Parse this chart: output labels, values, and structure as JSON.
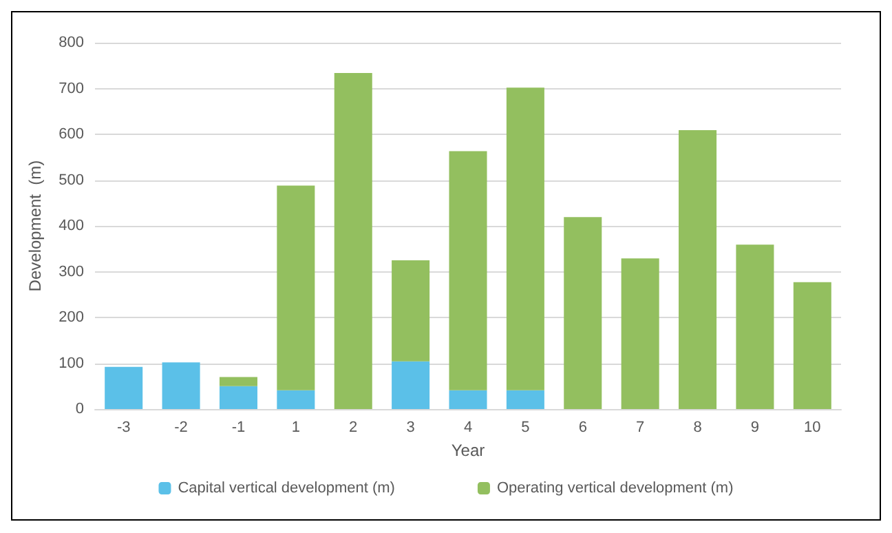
{
  "chart_data": {
    "type": "bar",
    "stacked": true,
    "xlabel": "Year",
    "ylabel": "Development  (m)",
    "categories": [
      "-3",
      "-2",
      "-1",
      "1",
      "2",
      "3",
      "4",
      "5",
      "6",
      "7",
      "8",
      "9",
      "10"
    ],
    "series": [
      {
        "name": "Capital vertical development (m)",
        "color": "#5bc0e8",
        "values": [
          92,
          102,
          50,
          41,
          null,
          104,
          41,
          41,
          null,
          null,
          null,
          null,
          null
        ]
      },
      {
        "name": "Operating vertical development (m)",
        "color": "#93bf5f",
        "values": [
          null,
          null,
          20,
          447,
          734,
          221,
          522,
          661,
          419,
          329,
          609,
          359,
          277
        ]
      }
    ],
    "ylim": [
      0,
      800
    ],
    "yticks": [
      0,
      100,
      200,
      300,
      400,
      500,
      600,
      700,
      800
    ],
    "grid": "y",
    "legend": "bottom"
  }
}
